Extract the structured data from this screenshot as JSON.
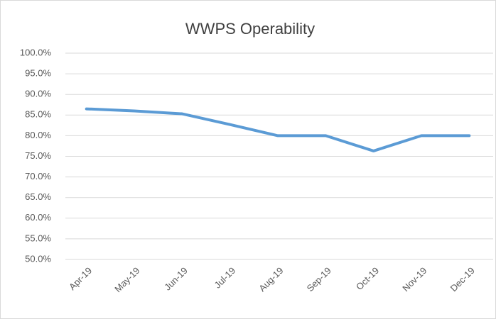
{
  "chart_data": {
    "type": "line",
    "title": "WWPS Operability",
    "categories": [
      "Apr-19",
      "May-19",
      "Jun-19",
      "Jul-19",
      "Aug-19",
      "Sep-19",
      "Oct-19",
      "Nov-19",
      "Dec-19"
    ],
    "values": [
      86.5,
      86.0,
      85.3,
      82.7,
      80.0,
      80.0,
      76.3,
      80.0,
      80.0
    ],
    "color": "#5b9bd5",
    "ylim": [
      50,
      100
    ],
    "yticks": [
      {
        "value": 50,
        "label": "50.0%"
      },
      {
        "value": 55,
        "label": "55.0%"
      },
      {
        "value": 60,
        "label": "60.0%"
      },
      {
        "value": 65,
        "label": "65.0%"
      },
      {
        "value": 70,
        "label": "70.0%"
      },
      {
        "value": 75,
        "label": "75.0%"
      },
      {
        "value": 80,
        "label": "80.0%"
      },
      {
        "value": 85,
        "label": "85.0%"
      },
      {
        "value": 90,
        "label": "90.0%"
      },
      {
        "value": 95,
        "label": "95.0%"
      },
      {
        "value": 100,
        "label": "100.0%"
      }
    ],
    "grid": true
  }
}
